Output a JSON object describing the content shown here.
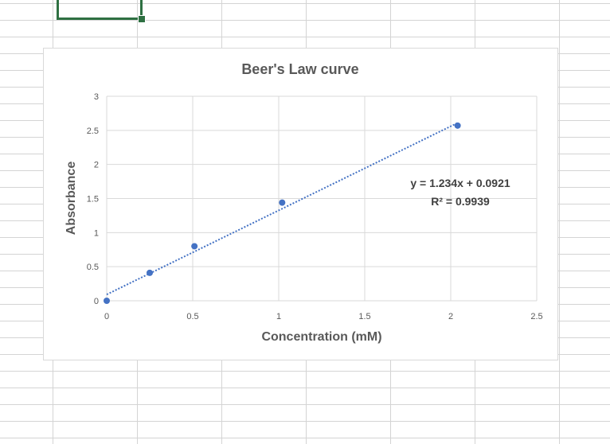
{
  "chart_data": {
    "type": "scatter",
    "title": "Beer's Law curve",
    "xlabel": "Concentration (mM)",
    "ylabel": "Absorbance",
    "xlim": [
      0,
      2.5
    ],
    "ylim": [
      0,
      3
    ],
    "xticks": [
      "0",
      "0.5",
      "1",
      "1.5",
      "2",
      "2.5"
    ],
    "yticks": [
      "0",
      "0.5",
      "1",
      "1.5",
      "2",
      "2.5",
      "3"
    ],
    "grid": true,
    "marker_color": "#4472c4",
    "trendline_color": "#4472c4",
    "series": [
      {
        "x": [
          0,
          0.25,
          0.51,
          1.02,
          2.04
        ],
        "y": [
          0,
          0.41,
          0.8,
          1.44,
          2.57
        ]
      }
    ],
    "trendline": {
      "type": "linear",
      "slope": 1.234,
      "intercept": 0.0921,
      "x_range": [
        0,
        2.04
      ],
      "equation_label": "y = 1.234x + 0.0921",
      "r2_label": "R² = 0.9939"
    }
  }
}
